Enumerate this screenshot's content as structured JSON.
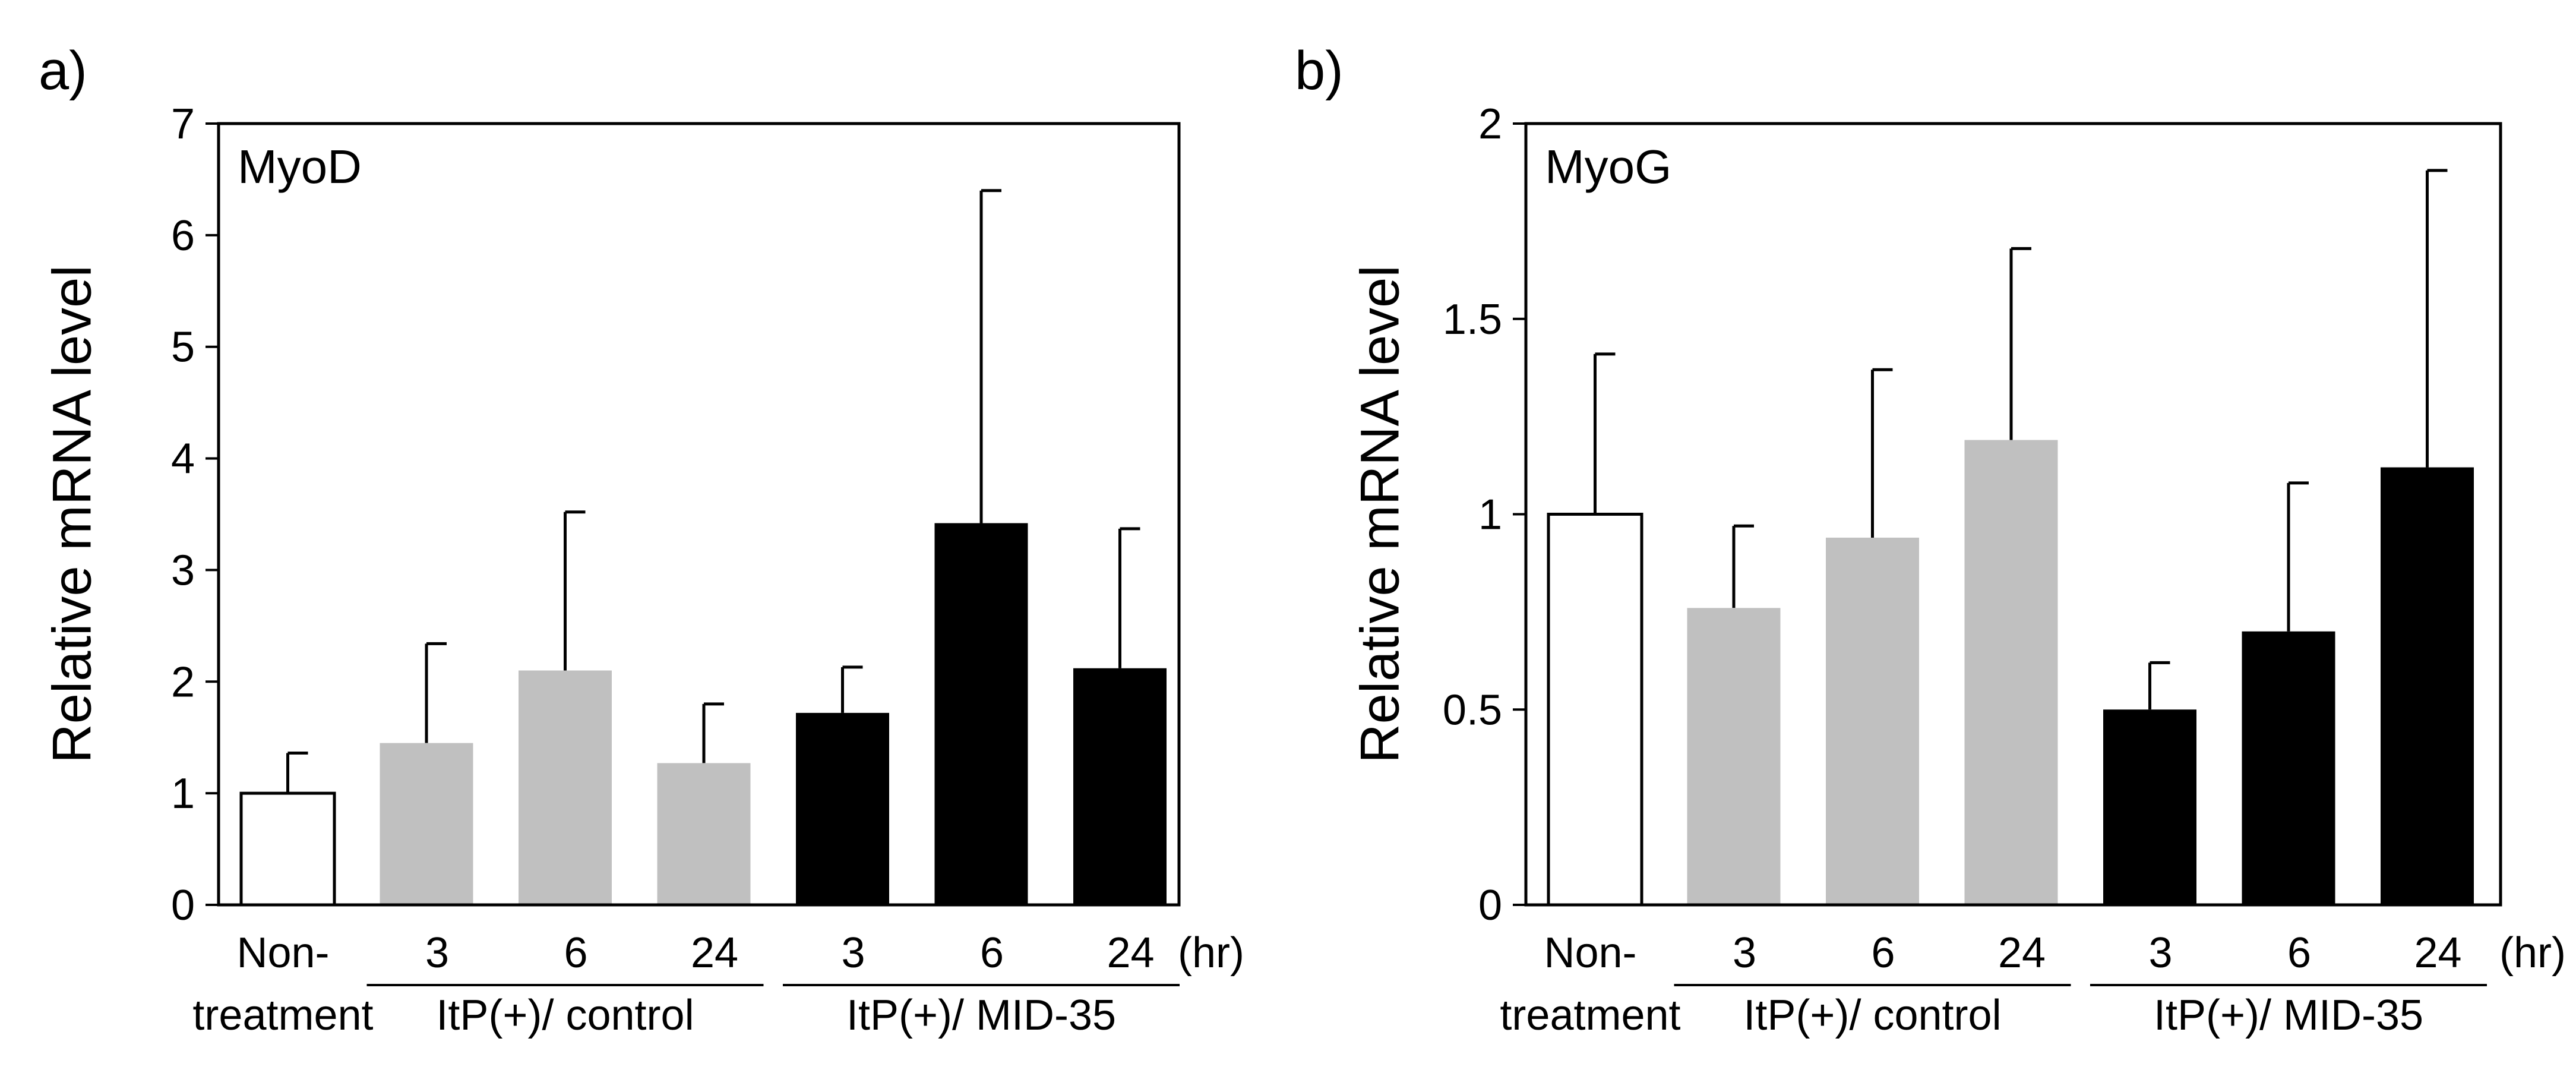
{
  "chart_data": [
    {
      "panel_label": "a)",
      "type": "bar",
      "title": "MyoD",
      "ylabel": "Relative mRNA level",
      "ylim": [
        0,
        7
      ],
      "yticks": [
        "0",
        "1",
        "2",
        "3",
        "4",
        "5",
        "6",
        "7"
      ],
      "ytick_values": [
        0,
        1,
        2,
        3,
        4,
        5,
        6,
        7
      ],
      "grid": false,
      "xlabel_unit": "(hr)",
      "categories": [
        "Non-treatment",
        "3",
        "6",
        "24",
        "3",
        "6",
        "24"
      ],
      "values": [
        1.0,
        1.45,
        2.1,
        1.27,
        1.72,
        3.42,
        2.12
      ],
      "errors": [
        0.36,
        0.89,
        1.42,
        0.53,
        0.41,
        2.98,
        1.25
      ],
      "bar_colors": [
        "#ffffff",
        "#c0c0c0",
        "#c0c0c0",
        "#c0c0c0",
        "#000000",
        "#000000",
        "#000000"
      ],
      "first_label_lines": [
        "Non-",
        "treatment"
      ],
      "groups": [
        {
          "label": "ItP(+)/ control",
          "bars": [
            1,
            2,
            3
          ]
        },
        {
          "label": "ItP(+)/ MID-35",
          "bars": [
            4,
            5,
            6
          ]
        }
      ]
    },
    {
      "panel_label": "b)",
      "type": "bar",
      "title": "MyoG",
      "ylabel": "Relative mRNA level",
      "ylim": [
        0,
        2
      ],
      "yticks": [
        "0",
        "0.5",
        "1",
        "1.5",
        "2"
      ],
      "ytick_values": [
        0,
        0.5,
        1,
        1.5,
        2
      ],
      "grid": false,
      "xlabel_unit": "(hr)",
      "categories": [
        "Non-treatment",
        "3",
        "6",
        "24",
        "3",
        "6",
        "24"
      ],
      "values": [
        1.0,
        0.76,
        0.94,
        1.19,
        0.5,
        0.7,
        1.12
      ],
      "errors": [
        0.41,
        0.21,
        0.43,
        0.49,
        0.12,
        0.38,
        0.76
      ],
      "bar_colors": [
        "#ffffff",
        "#c0c0c0",
        "#c0c0c0",
        "#c0c0c0",
        "#000000",
        "#000000",
        "#000000"
      ],
      "first_label_lines": [
        "Non-",
        "treatment"
      ],
      "groups": [
        {
          "label": "ItP(+)/ control",
          "bars": [
            1,
            2,
            3
          ]
        },
        {
          "label": "ItP(+)/ MID-35",
          "bars": [
            4,
            5,
            6
          ]
        }
      ]
    }
  ]
}
